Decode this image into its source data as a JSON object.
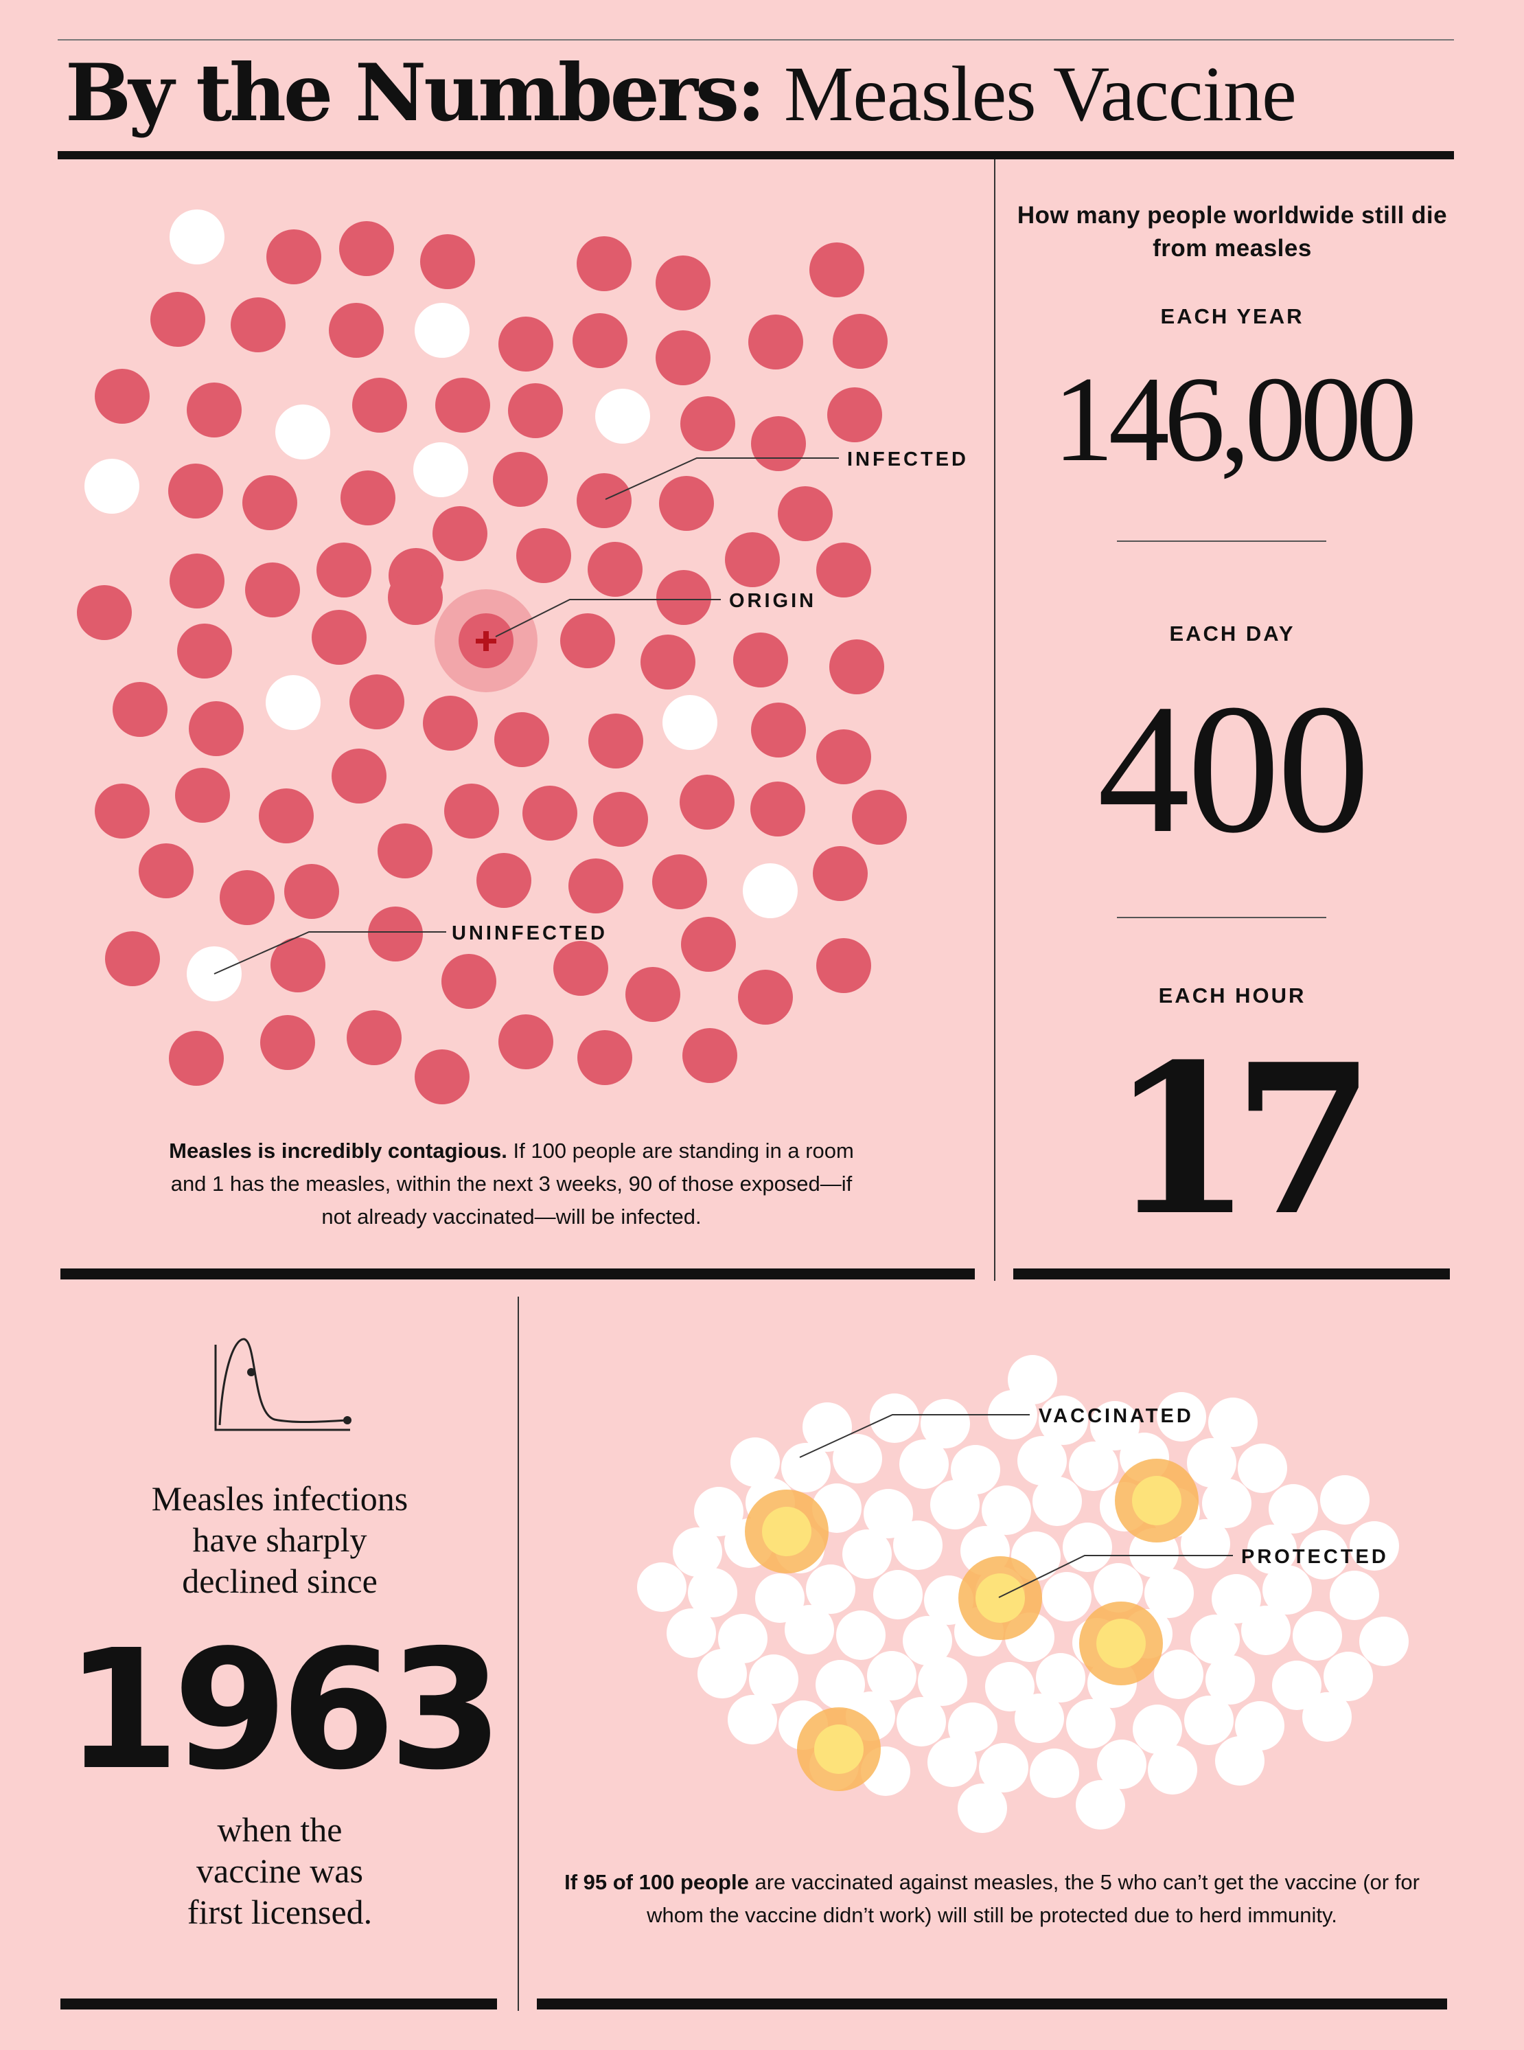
{
  "title": {
    "bold": "By the Numbers:",
    "light": "Measles Vaccine"
  },
  "contagion": {
    "labels": {
      "infected": "INFECTED",
      "origin": "ORIGIN",
      "uninfected": "UNINFECTED"
    },
    "caption_bold": "Measles is incredibly contagious.",
    "caption_rest": " If 100 people are standing in a room and 1 has the measles, within the next 3 weeks, 90 of those exposed—if not already vaccinated—will be infected.",
    "colors": {
      "infected": "#e05c6c",
      "uninfected": "#ffffff",
      "origin_halo": "#f2a6aa",
      "origin_cross": "#b5121b"
    }
  },
  "deaths": {
    "question": "How many people worldwide still die from measles",
    "each_year_label": "EACH YEAR",
    "each_year_value": "146,000",
    "each_day_label": "EACH DAY",
    "each_day_value": "400",
    "each_hour_label": "EACH HOUR",
    "each_hour_value": "17"
  },
  "decline": {
    "text_top": "Measles infections have sharply declined since",
    "year": "1963",
    "text_bottom": "when the vaccine was first licensed."
  },
  "herd": {
    "labels": {
      "vaccinated": "VACCINATED",
      "protected": "PROTECTED"
    },
    "caption_bold": "If 95 of 100 people",
    "caption_rest": " are vaccinated against measles, the 5 who can’t get the vaccine (or for whom the vaccine didn’t work) will still be protected due to herd immunity.",
    "colors": {
      "vaccinated": "#ffffff",
      "protected": "#fde27a",
      "protected_halo": "#f9b65b"
    }
  }
}
